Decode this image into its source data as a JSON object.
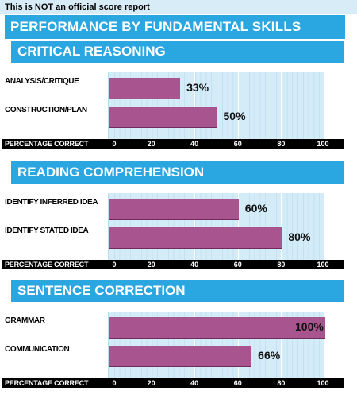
{
  "disclaimer": "This is NOT an official score report",
  "title": "PERFORMANCE BY FUNDAMENTAL SKILLS",
  "axis": {
    "label": "PERCENTAGE CORRECT",
    "ticks": [
      "0",
      "20",
      "40",
      "60",
      "80",
      "100"
    ]
  },
  "colors": {
    "header": "#2aa6e0",
    "bar": "#a8548e",
    "plot_bg": "#d4ebf8"
  },
  "sections": [
    {
      "title": "CRITICAL REASONING",
      "rows": [
        {
          "label": "ANALYSIS/CRITIQUE",
          "value": 33,
          "value_text": "33%"
        },
        {
          "label": "CONSTRUCTION/PLAN",
          "value": 50,
          "value_text": "50%"
        }
      ]
    },
    {
      "title": "READING COMPREHENSION",
      "rows": [
        {
          "label": "IDENTIFY INFERRED IDEA",
          "value": 60,
          "value_text": "60%"
        },
        {
          "label": "IDENTIFY STATED IDEA",
          "value": 80,
          "value_text": "80%"
        }
      ]
    },
    {
      "title": "SENTENCE CORRECTION",
      "rows": [
        {
          "label": "GRAMMAR",
          "value": 100,
          "value_text": "100%"
        },
        {
          "label": "COMMUNICATION",
          "value": 66,
          "value_text": "66%"
        }
      ]
    }
  ],
  "chart_data": [
    {
      "type": "bar",
      "title": "CRITICAL REASONING",
      "xlabel": "PERCENTAGE CORRECT",
      "xlim": [
        0,
        100
      ],
      "categories": [
        "ANALYSIS/CRITIQUE",
        "CONSTRUCTION/PLAN"
      ],
      "values": [
        33,
        50
      ]
    },
    {
      "type": "bar",
      "title": "READING COMPREHENSION",
      "xlabel": "PERCENTAGE CORRECT",
      "xlim": [
        0,
        100
      ],
      "categories": [
        "IDENTIFY INFERRED IDEA",
        "IDENTIFY STATED IDEA"
      ],
      "values": [
        60,
        80
      ]
    },
    {
      "type": "bar",
      "title": "SENTENCE CORRECTION",
      "xlabel": "PERCENTAGE CORRECT",
      "xlim": [
        0,
        100
      ],
      "categories": [
        "GRAMMAR",
        "COMMUNICATION"
      ],
      "values": [
        100,
        66
      ]
    }
  ]
}
